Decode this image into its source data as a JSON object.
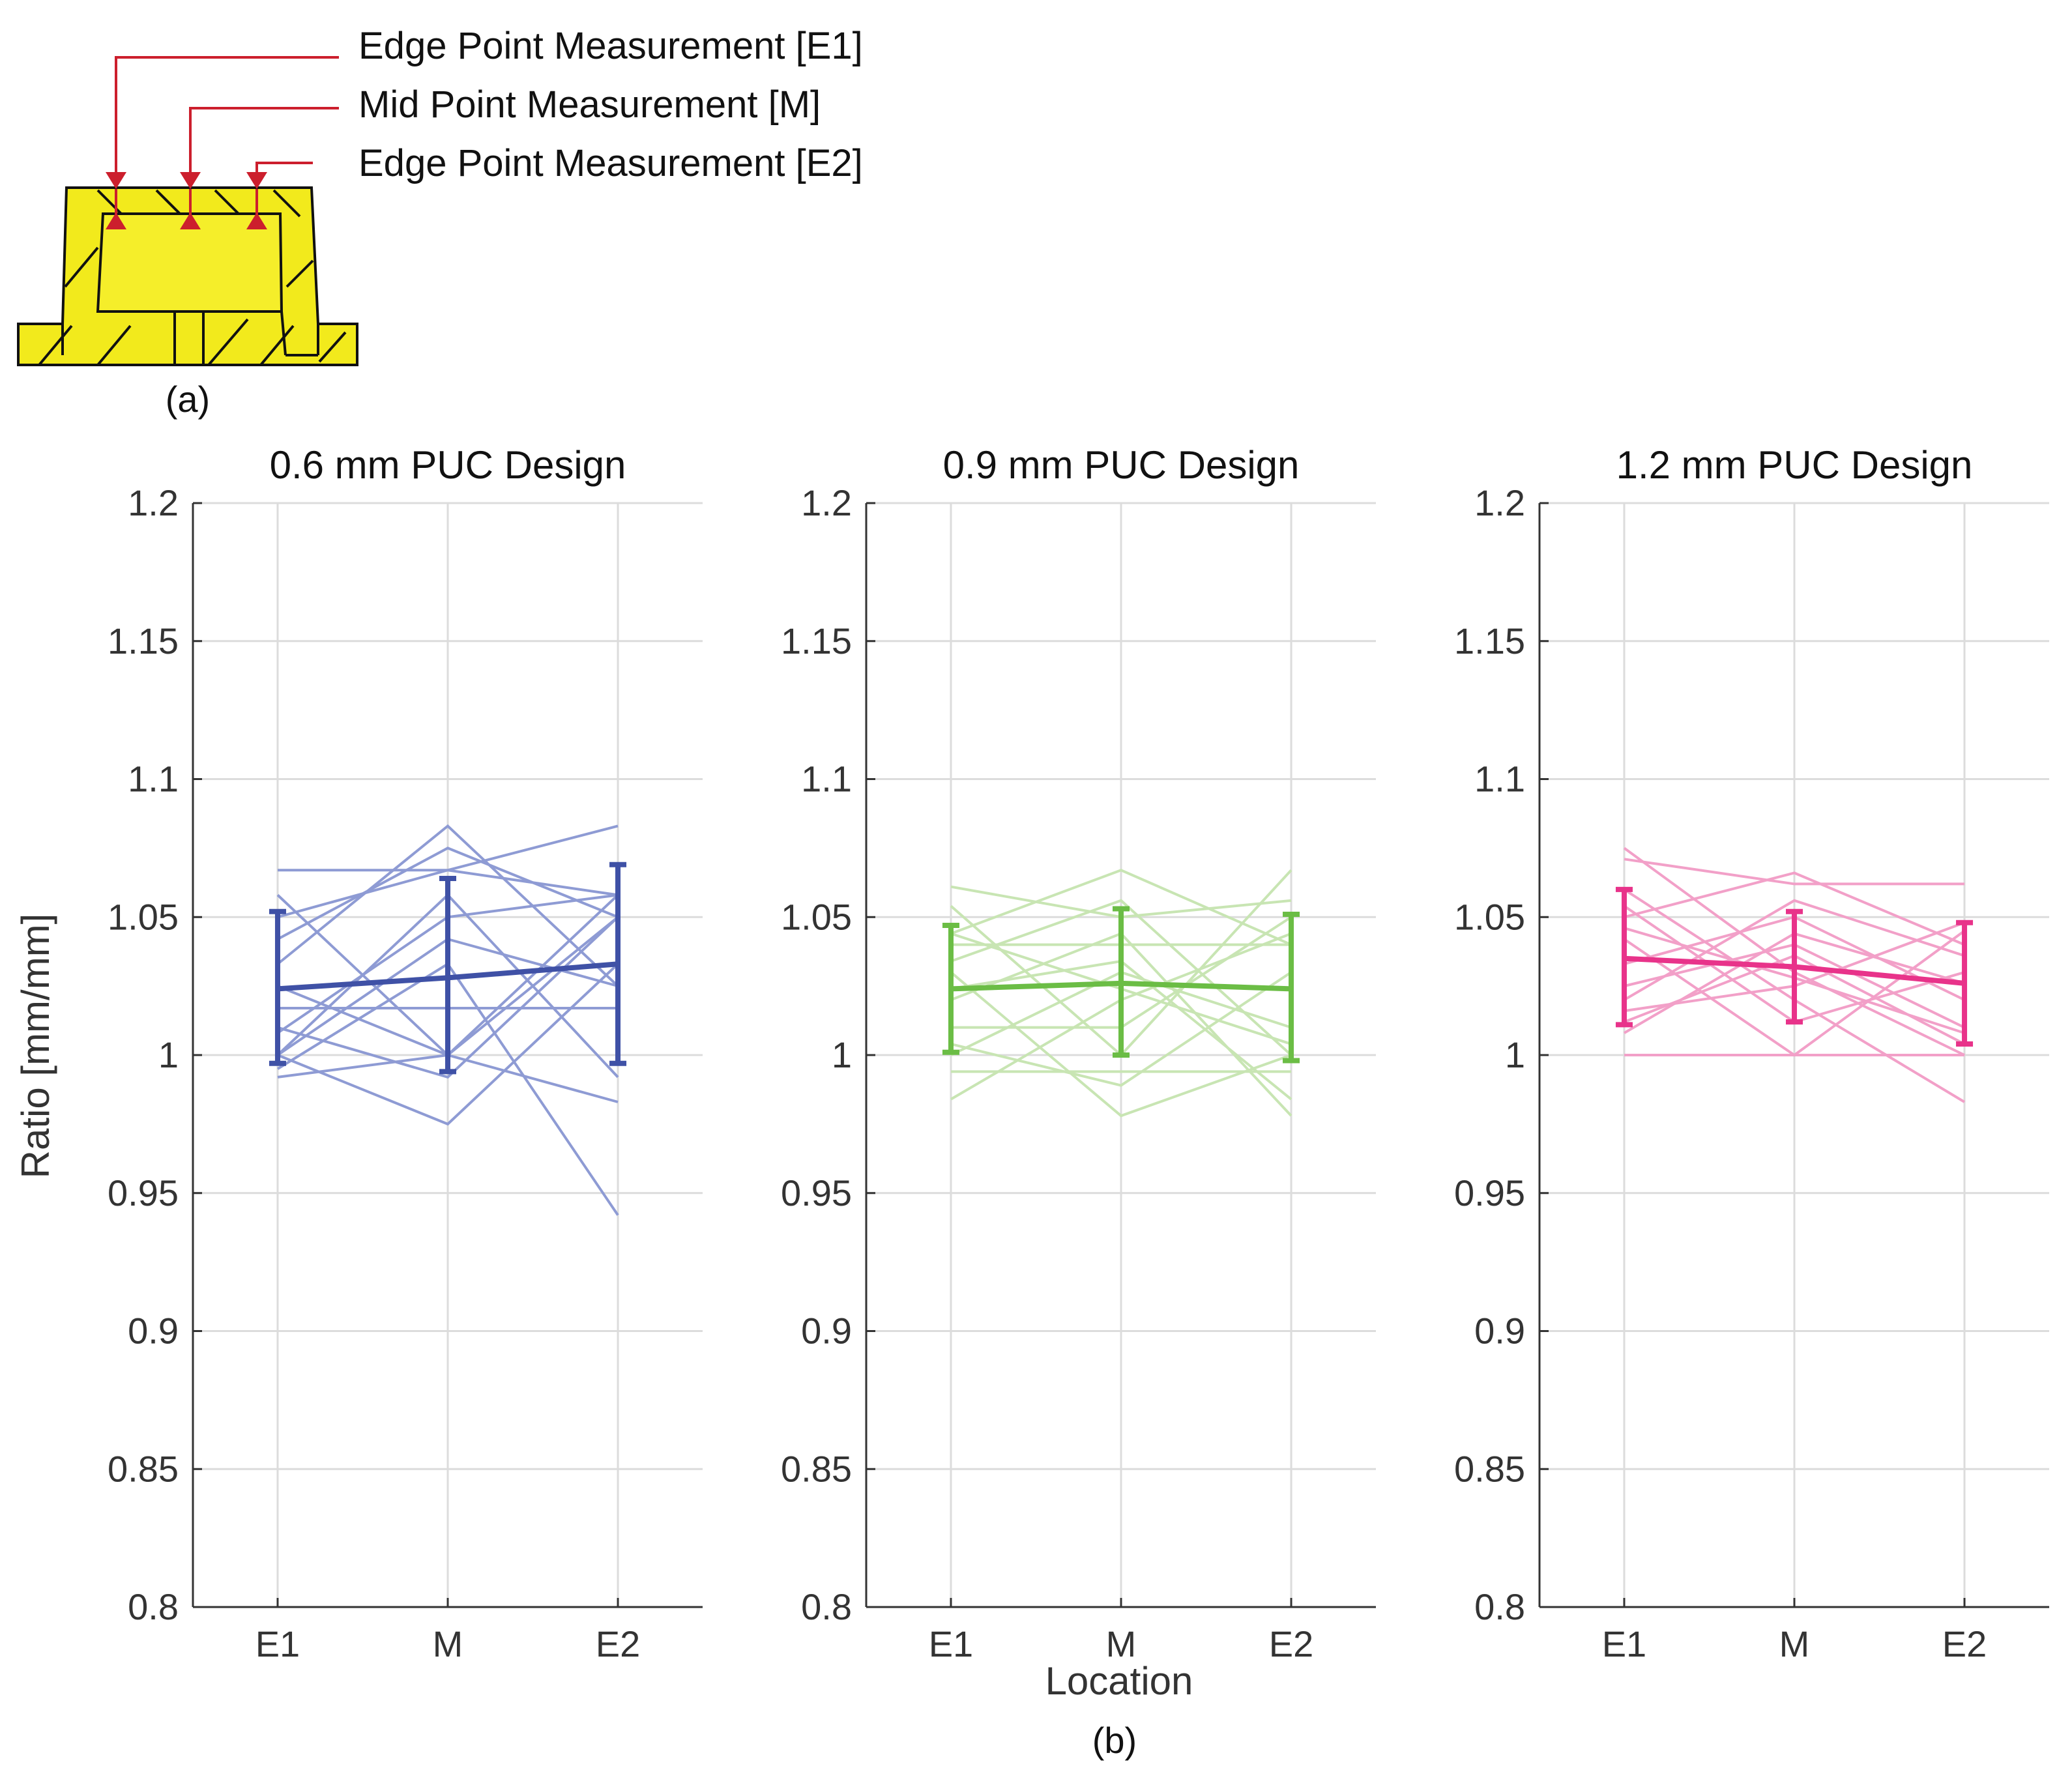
{
  "diagram": {
    "labels": [
      "Edge Point Measurement [E1]",
      "Mid Point Measurement [M]",
      "Edge Point Measurement [E2]"
    ],
    "caption": "(a)",
    "colors": {
      "part": "#f2ea1c",
      "marker": "#cc1f2d",
      "outline": "#111111"
    }
  },
  "figure": {
    "caption": "(b)",
    "xlabel": "Location",
    "ylabel": "Ratio [mm/mm]"
  },
  "chart_data": [
    {
      "type": "line",
      "title": "0.6 mm PUC Design",
      "categories": [
        "E1",
        "M",
        "E2"
      ],
      "ylim": [
        0.8,
        1.2
      ],
      "yticks": [
        0.8,
        0.85,
        0.9,
        0.95,
        1,
        1.05,
        1.1,
        1.15,
        1.2
      ],
      "grid": true,
      "color": "#3f51a6",
      "light_color": "#8e9bd4",
      "mean": [
        1.024,
        1.028,
        1.033
      ],
      "error_low": [
        0.997,
        0.994,
        0.997
      ],
      "error_high": [
        1.052,
        1.064,
        1.069
      ],
      "individual": [
        [
          1.067,
          1.067,
          1.083
        ],
        [
          1.058,
          1.0,
          1.05
        ],
        [
          1.042,
          1.075,
          1.05
        ],
        [
          1.033,
          1.083,
          1.025
        ],
        [
          1.017,
          1.017,
          1.017
        ],
        [
          1.008,
          1.05,
          1.058
        ],
        [
          1.0,
          0.975,
          1.033
        ],
        [
          0.992,
          1.0,
          1.058
        ],
        [
          1.0,
          1.058,
          0.992
        ],
        [
          1.025,
          1.0,
          0.983
        ],
        [
          0.995,
          1.033,
          0.942
        ],
        [
          1.05,
          1.067,
          1.058
        ],
        [
          1.01,
          0.992,
          1.05
        ],
        [
          1.0,
          1.042,
          1.025
        ]
      ]
    },
    {
      "type": "line",
      "title": "0.9 mm PUC Design",
      "categories": [
        "E1",
        "M",
        "E2"
      ],
      "ylim": [
        0.8,
        1.2
      ],
      "yticks": [
        0.8,
        0.85,
        0.9,
        0.95,
        1,
        1.05,
        1.1,
        1.15,
        1.2
      ],
      "grid": true,
      "color": "#6bbd45",
      "light_color": "#c8e5b3",
      "mean": [
        1.024,
        1.026,
        1.024
      ],
      "error_low": [
        1.001,
        1.0,
        0.998
      ],
      "error_high": [
        1.047,
        1.053,
        1.051
      ],
      "individual": [
        [
          1.061,
          1.05,
          1.056
        ],
        [
          1.054,
          1.0,
          1.067
        ],
        [
          1.044,
          1.067,
          1.04
        ],
        [
          1.04,
          1.04,
          1.04
        ],
        [
          1.03,
          0.978,
          1.0
        ],
        [
          1.02,
          1.044,
          0.978
        ],
        [
          1.01,
          1.01,
          1.05
        ],
        [
          1.0,
          1.03,
          1.01
        ],
        [
          0.994,
          0.994,
          0.994
        ],
        [
          0.984,
          1.02,
          1.044
        ],
        [
          1.034,
          1.056,
          1.0
        ],
        [
          1.004,
          0.989,
          1.03
        ],
        [
          1.024,
          1.034,
          0.984
        ],
        [
          1.044,
          1.024,
          1.004
        ]
      ]
    },
    {
      "type": "line",
      "title": "1.2 mm PUC Design",
      "categories": [
        "E1",
        "M",
        "E2"
      ],
      "ylim": [
        0.8,
        1.2
      ],
      "yticks": [
        0.8,
        0.85,
        0.9,
        0.95,
        1,
        1.05,
        1.1,
        1.15,
        1.2
      ],
      "grid": true,
      "color": "#e8338a",
      "light_color": "#f2a0c8",
      "mean": [
        1.035,
        1.032,
        1.026
      ],
      "error_low": [
        1.011,
        1.012,
        1.004
      ],
      "error_high": [
        1.06,
        1.052,
        1.048
      ],
      "individual": [
        [
          1.075,
          1.03,
          1.0
        ],
        [
          1.071,
          1.062,
          1.062
        ],
        [
          1.06,
          1.02,
          0.983
        ],
        [
          1.05,
          1.066,
          1.04
        ],
        [
          1.042,
          1.0,
          1.045
        ],
        [
          1.033,
          1.05,
          1.02
        ],
        [
          1.025,
          1.04,
          1.01
        ],
        [
          1.016,
          1.025,
          1.048
        ],
        [
          1.012,
          1.036,
          1.004
        ],
        [
          1.0,
          1.0,
          1.0
        ],
        [
          1.054,
          1.012,
          1.03
        ],
        [
          1.02,
          1.056,
          1.036
        ],
        [
          1.046,
          1.028,
          1.008
        ],
        [
          1.008,
          1.044,
          1.026
        ]
      ]
    }
  ]
}
